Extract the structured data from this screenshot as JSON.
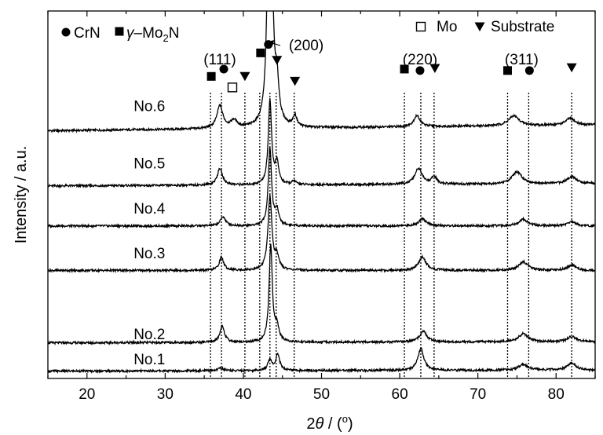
{
  "chart_data": {
    "type": "line",
    "xlabel": {
      "prefix": "2",
      "var": "θ",
      "mid": " / (",
      "sup": "o",
      "suffix": ")"
    },
    "ylabel": "Intensity / a.u.",
    "xlim": [
      15,
      85
    ],
    "ylim": [
      0,
      1
    ],
    "xticks": [
      20,
      30,
      40,
      50,
      60,
      70,
      80
    ],
    "grid": false,
    "legend": [
      {
        "marker": "circle",
        "label": "CrN",
        "position": "top-left"
      },
      {
        "marker": "square",
        "label_main": "γ–Mo",
        "label_sub": "2",
        "label_end": "N",
        "position": "top-left"
      },
      {
        "marker": "open-square",
        "label": "Mo",
        "position": "top-right"
      },
      {
        "marker": "down-triangle",
        "label": "Substrate",
        "position": "top-right"
      }
    ],
    "planes": [
      {
        "label": "(111)",
        "x": 37.4
      },
      {
        "label": "(200)",
        "x": 43.5
      },
      {
        "label": "(220)",
        "x": 62.8
      },
      {
        "label": "(311)",
        "x": 75.8
      }
    ],
    "reference_lines": [
      35.8,
      37.2,
      40.2,
      42.1,
      43.4,
      44.2,
      46.5,
      60.6,
      62.7,
      64.4,
      73.8,
      76.5,
      82.0
    ],
    "phase_markers": [
      {
        "phase": "square",
        "x": 35.9,
        "y": 0.822
      },
      {
        "phase": "circle",
        "x": 37.5,
        "y": 0.842
      },
      {
        "phase": "open-square",
        "x": 38.6,
        "y": 0.792
      },
      {
        "phase": "down-triangle",
        "x": 40.2,
        "y": 0.822
      },
      {
        "phase": "square",
        "x": 42.2,
        "y": 0.886
      },
      {
        "phase": "circle",
        "x": 43.2,
        "y": 0.909
      },
      {
        "phase": "down-triangle",
        "x": 44.3,
        "y": 0.866
      },
      {
        "phase": "down-triangle",
        "x": 46.6,
        "y": 0.809
      },
      {
        "phase": "square",
        "x": 60.6,
        "y": 0.842
      },
      {
        "phase": "circle",
        "x": 62.6,
        "y": 0.838
      },
      {
        "phase": "down-triangle",
        "x": 64.5,
        "y": 0.844
      },
      {
        "phase": "square",
        "x": 73.8,
        "y": 0.838
      },
      {
        "phase": "circle",
        "x": 76.6,
        "y": 0.838
      },
      {
        "phase": "down-triangle",
        "x": 82.0,
        "y": 0.846
      }
    ],
    "series": [
      {
        "name": "No.6",
        "label_x": 30.0,
        "label_y": 0.728,
        "baseline": 0.674,
        "slope": 0.016,
        "clip": true,
        "peaks": [
          [
            37.0,
            0.062,
            0.45
          ],
          [
            38.8,
            0.02,
            0.5
          ],
          [
            43.4,
            1.2,
            0.25
          ],
          [
            44.3,
            0.1,
            0.3
          ],
          [
            46.6,
            0.03,
            0.3
          ],
          [
            62.2,
            0.03,
            0.5
          ],
          [
            74.6,
            0.027,
            0.8
          ],
          [
            81.8,
            0.018,
            0.7
          ]
        ]
      },
      {
        "name": "No.5",
        "label_x": 30.0,
        "label_y": 0.572,
        "baseline": 0.524,
        "slope": 0.006,
        "peaks": [
          [
            37.0,
            0.045,
            0.4
          ],
          [
            43.4,
            0.23,
            0.25
          ],
          [
            44.3,
            0.058,
            0.28
          ],
          [
            46.5,
            0.01,
            0.3
          ],
          [
            62.4,
            0.043,
            0.55
          ],
          [
            64.4,
            0.02,
            0.4
          ],
          [
            75.0,
            0.032,
            0.8
          ],
          [
            82.0,
            0.02,
            0.7
          ]
        ]
      },
      {
        "name": "No.4",
        "label_x": 30.0,
        "label_y": 0.449,
        "baseline": 0.415,
        "slope": 0.0,
        "peaks": [
          [
            37.4,
            0.025,
            0.4
          ],
          [
            43.4,
            0.21,
            0.25
          ],
          [
            44.3,
            0.04,
            0.3
          ],
          [
            62.9,
            0.02,
            0.55
          ],
          [
            75.8,
            0.018,
            0.7
          ],
          [
            82.0,
            0.012,
            0.6
          ]
        ]
      },
      {
        "name": "No.3",
        "label_x": 30.0,
        "label_y": 0.327,
        "baseline": 0.294,
        "slope": 0.0,
        "peaks": [
          [
            37.2,
            0.035,
            0.35
          ],
          [
            43.4,
            0.2,
            0.3
          ],
          [
            44.3,
            0.035,
            0.3
          ],
          [
            62.9,
            0.037,
            0.55
          ],
          [
            75.8,
            0.023,
            0.7
          ],
          [
            82.0,
            0.015,
            0.6
          ]
        ]
      },
      {
        "name": "No.2",
        "label_x": 30.0,
        "label_y": 0.107,
        "baseline": 0.097,
        "slope": 0.003,
        "peaks": [
          [
            37.3,
            0.045,
            0.35
          ],
          [
            43.5,
            0.26,
            0.25
          ],
          [
            44.3,
            0.04,
            0.3
          ],
          [
            63.0,
            0.03,
            0.55
          ],
          [
            75.8,
            0.022,
            0.7
          ],
          [
            82.0,
            0.015,
            0.6
          ]
        ]
      },
      {
        "name": "No.1",
        "label_x": 30.0,
        "label_y": 0.038,
        "baseline": 0.02,
        "slope": 0.003,
        "peaks": [
          [
            37.1,
            0.008,
            0.4
          ],
          [
            43.4,
            0.03,
            0.3
          ],
          [
            44.4,
            0.045,
            0.3
          ],
          [
            62.7,
            0.06,
            0.45
          ],
          [
            75.8,
            0.015,
            0.7
          ],
          [
            82.0,
            0.02,
            0.6
          ]
        ]
      }
    ]
  }
}
